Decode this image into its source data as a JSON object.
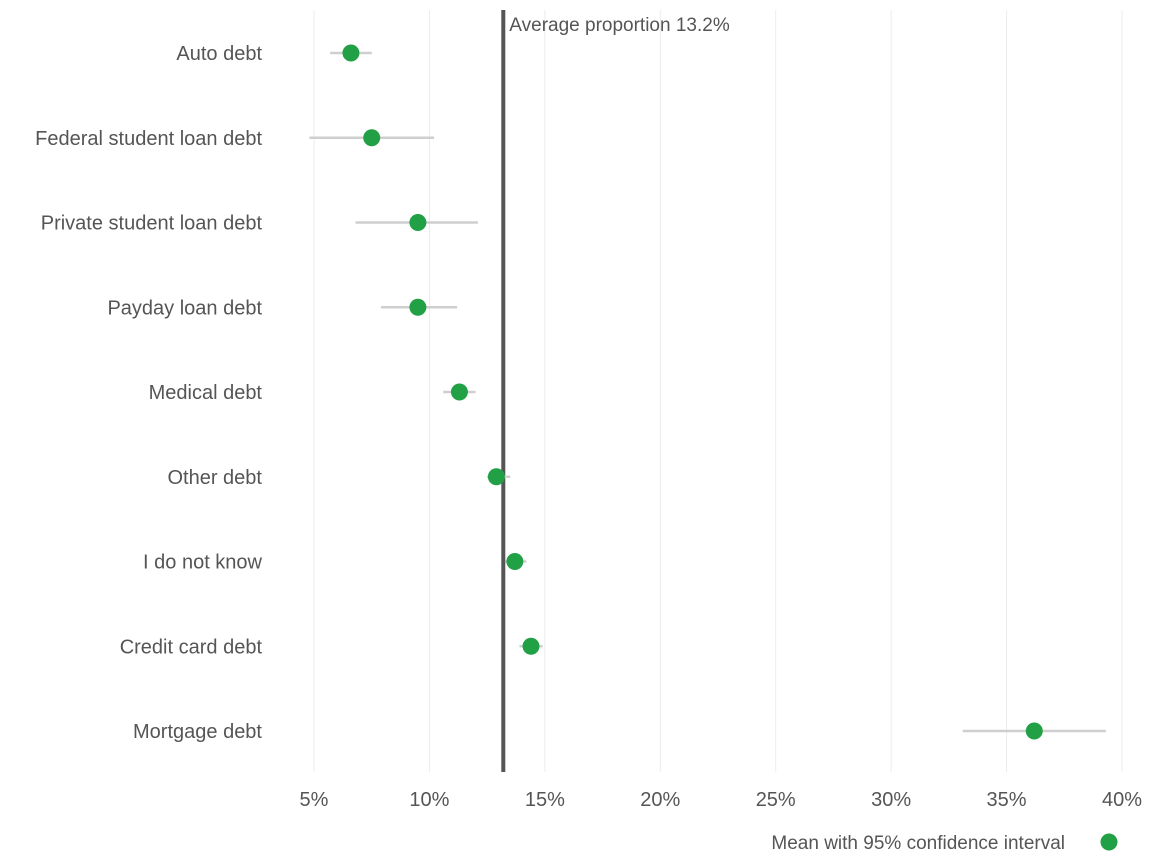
{
  "chart_data": {
    "type": "scatter",
    "orientation": "horizontal",
    "categories": [
      "Auto debt",
      "Federal student loan debt",
      "Private student loan debt",
      "Payday loan debt",
      "Medical debt",
      "Other debt",
      "I do not know",
      "Credit card debt",
      "Mortgage debt"
    ],
    "series": [
      {
        "name": "Mean with 95% confidence interval",
        "color": "#22a045",
        "values": [
          6.6,
          7.5,
          9.5,
          9.5,
          11.3,
          12.9,
          13.7,
          14.4,
          36.2
        ],
        "ci_low": [
          5.7,
          4.8,
          6.8,
          7.9,
          10.6,
          12.5,
          13.3,
          13.9,
          33.1
        ],
        "ci_high": [
          7.5,
          10.2,
          12.1,
          11.2,
          12.0,
          13.5,
          14.2,
          14.9,
          39.3
        ]
      }
    ],
    "reference_line": {
      "value": 13.2,
      "label": "Average proportion 13.2%",
      "color": "#555555"
    },
    "xlim": [
      5,
      40
    ],
    "x_ticks": [
      5,
      10,
      15,
      20,
      25,
      30,
      35,
      40
    ],
    "x_tick_labels": [
      "5%",
      "10%",
      "15%",
      "20%",
      "25%",
      "30%",
      "35%",
      "40%"
    ],
    "grid": true,
    "legend": {
      "position": "bottom-right",
      "label": "Mean with 95% confidence interval"
    },
    "title": "",
    "xlabel": "",
    "ylabel": ""
  }
}
